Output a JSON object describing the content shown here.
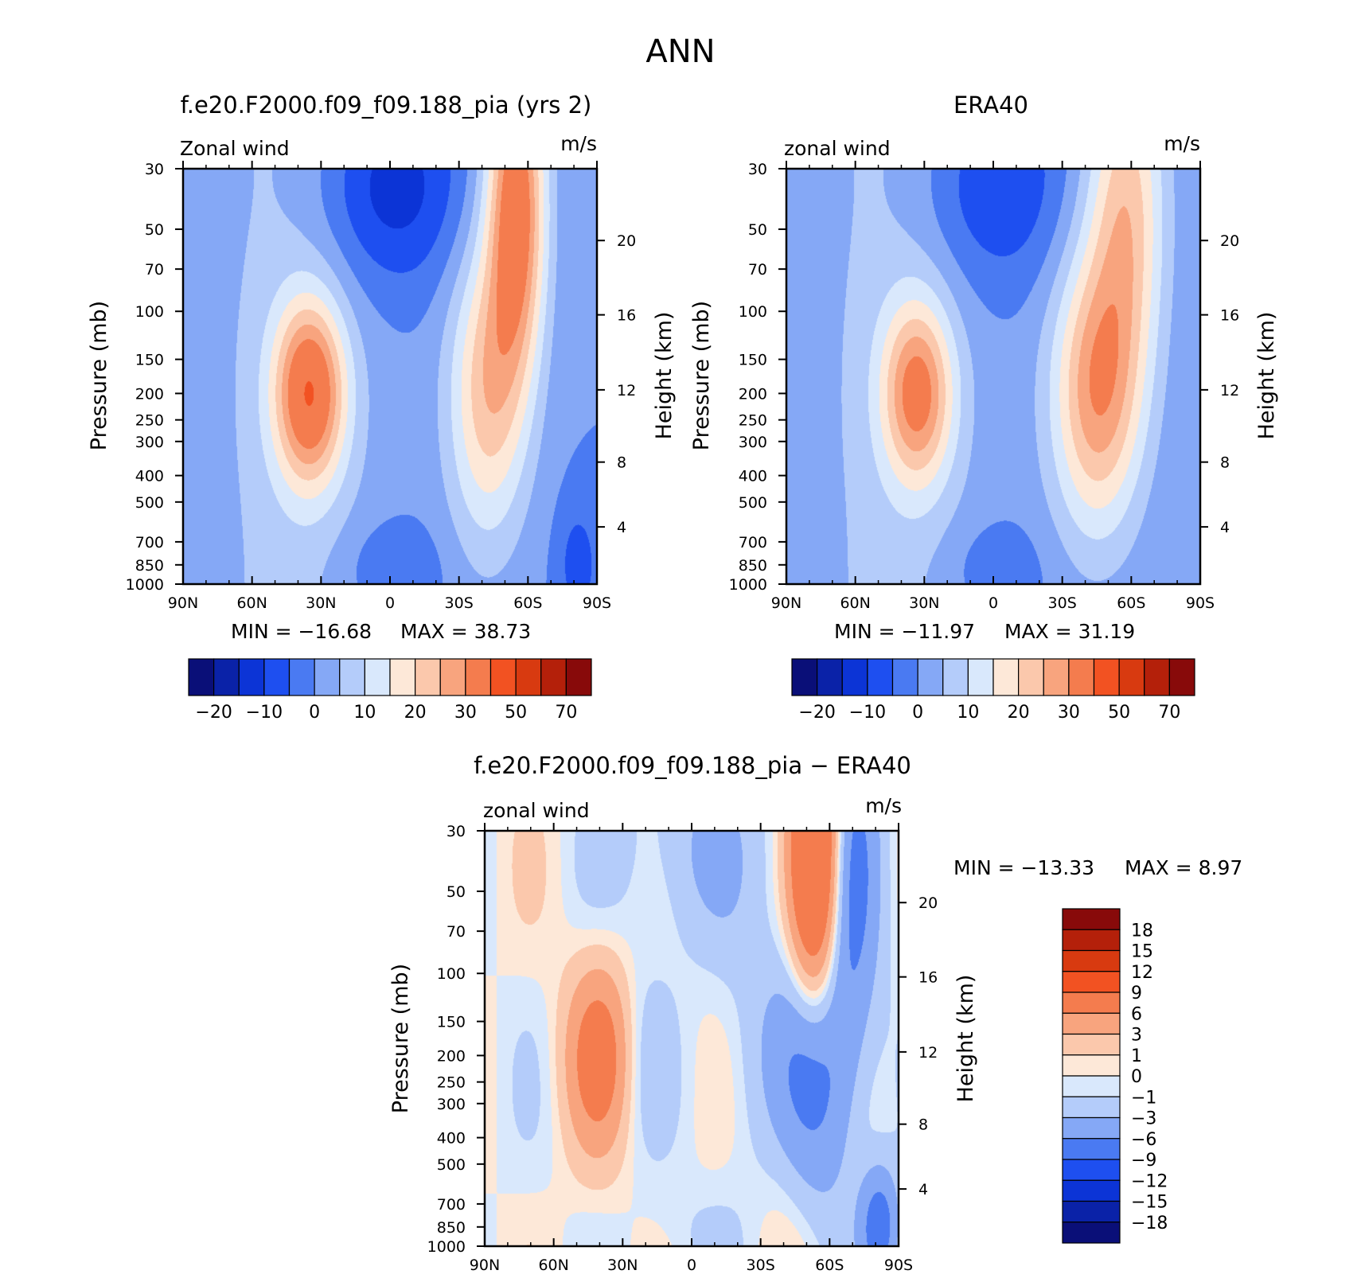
{
  "figure": {
    "title": "ANN",
    "top_left_title": "f.e20.F2000.f09_f09.188_pia (yrs 2)",
    "top_right_title": "ERA40",
    "bottom_title": "f.e20.F2000.f09_f09.188_pia − ERA40"
  },
  "chart_data": [
    {
      "id": "model",
      "type": "heatmap",
      "title": "f.e20.F2000.f09_f09.188_pia (yrs 2)",
      "variable_label": "Zonal wind",
      "units": "m/s",
      "xlabel": "",
      "ylabel": "Pressure (mb)",
      "ylabel_right": "Height (km)",
      "x_ticks": [
        "90N",
        "60N",
        "30N",
        "0",
        "30S",
        "60S",
        "90S"
      ],
      "y_ticks": [
        "30",
        "50",
        "70",
        "100",
        "150",
        "200",
        "250",
        "300",
        "400",
        "500",
        "700",
        "850",
        "1000"
      ],
      "height_ticks": [
        "20",
        "16",
        "12",
        "8",
        "4"
      ],
      "min_label": "MIN = −16.68",
      "max_label": "MAX =   38.73",
      "min": -16.68,
      "max": 38.73,
      "colorbar_labels": [
        "−20",
        "−10",
        "0",
        "10",
        "20",
        "30",
        "50",
        "70"
      ],
      "colorbar_colors": [
        "#0a0f78",
        "#0a22a8",
        "#0c34d6",
        "#1e4ff0",
        "#4a7af2",
        "#85a8f6",
        "#b4ccfa",
        "#d9e8fc",
        "#fde8d8",
        "#fbc8ac",
        "#f8a47e",
        "#f47c4e",
        "#f25222",
        "#d83a10",
        "#b4200a",
        "#880a0a"
      ],
      "jets": [
        {
          "lat": 35,
          "p": 200,
          "peak": 31
        },
        {
          "lat": -42,
          "p": 200,
          "peak": 38.7
        }
      ]
    },
    {
      "id": "obs",
      "type": "heatmap",
      "title": "ERA40",
      "variable_label": "zonal wind",
      "units": "m/s",
      "xlabel": "",
      "ylabel": "Pressure (mb)",
      "ylabel_right": "Height (km)",
      "x_ticks": [
        "90N",
        "60N",
        "30N",
        "0",
        "30S",
        "60S",
        "90S"
      ],
      "y_ticks": [
        "30",
        "50",
        "70",
        "100",
        "150",
        "200",
        "250",
        "300",
        "400",
        "500",
        "700",
        "850",
        "1000"
      ],
      "height_ticks": [
        "20",
        "16",
        "12",
        "8",
        "4"
      ],
      "min_label": "MIN = −11.97",
      "max_label": "MAX =   31.19",
      "min": -11.97,
      "max": 31.19,
      "colorbar_labels": [
        "−20",
        "−10",
        "0",
        "10",
        "20",
        "30",
        "50",
        "70"
      ],
      "colorbar_colors": [
        "#0a0f78",
        "#0a22a8",
        "#0c34d6",
        "#1e4ff0",
        "#4a7af2",
        "#85a8f6",
        "#b4ccfa",
        "#d9e8fc",
        "#fde8d8",
        "#fbc8ac",
        "#f8a47e",
        "#f47c4e",
        "#f25222",
        "#d83a10",
        "#b4200a",
        "#880a0a"
      ],
      "jets": [
        {
          "lat": 33,
          "p": 200,
          "peak": 28
        },
        {
          "lat": -45,
          "p": 200,
          "peak": 31.2
        }
      ]
    },
    {
      "id": "diff",
      "type": "heatmap",
      "title": "f.e20.F2000.f09_f09.188_pia − ERA40",
      "variable_label": "zonal wind",
      "units": "m/s",
      "xlabel": "",
      "ylabel": "Pressure (mb)",
      "ylabel_right": "Height (km)",
      "x_ticks": [
        "90N",
        "60N",
        "30N",
        "0",
        "30S",
        "60S",
        "90S"
      ],
      "y_ticks": [
        "30",
        "50",
        "70",
        "100",
        "150",
        "200",
        "250",
        "300",
        "400",
        "500",
        "700",
        "850",
        "1000"
      ],
      "height_ticks": [
        "20",
        "16",
        "12",
        "8",
        "4"
      ],
      "min_label": "MIN = −13.33",
      "max_label": "MAX =     8.97",
      "min": -13.33,
      "max": 8.97,
      "colorbar_labels": [
        "18",
        "15",
        "12",
        "9",
        "6",
        "3",
        "1",
        "0",
        "−1",
        "−3",
        "−6",
        "−9",
        "−12",
        "−15",
        "−18"
      ],
      "colorbar_colors": [
        "#880a0a",
        "#b4200a",
        "#d83a10",
        "#f25222",
        "#f47c4e",
        "#f8a47e",
        "#fbc8ac",
        "#fde8d8",
        "#d9e8fc",
        "#b4ccfa",
        "#85a8f6",
        "#4a7af2",
        "#1e4ff0",
        "#0c34d6",
        "#0a22a8",
        "#0a0f78"
      ]
    }
  ]
}
